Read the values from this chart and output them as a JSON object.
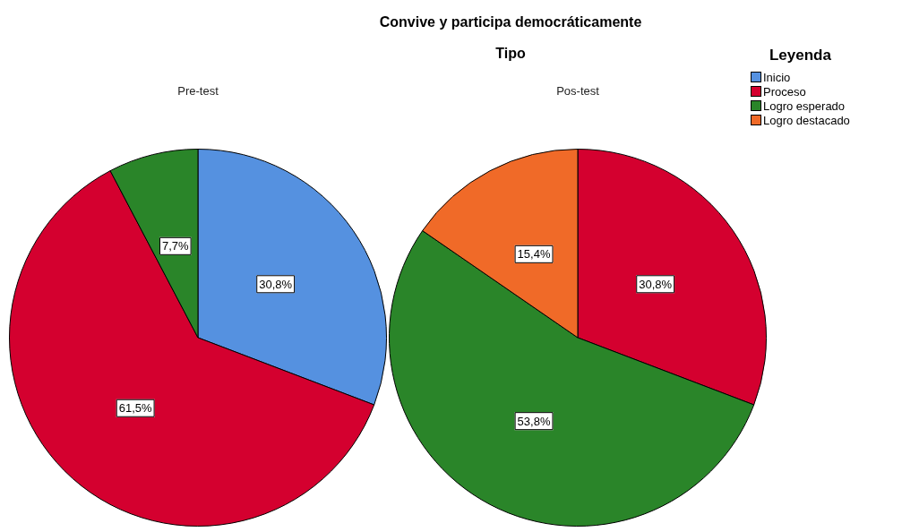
{
  "chart_data": [
    {
      "type": "pie",
      "title": "Pre-test",
      "annotations": [
        "Convive y participa democráticamente",
        "Tipo"
      ],
      "categories": [
        "Inicio",
        "Proceso",
        "Logro esperado",
        "Logro destacado"
      ],
      "values": [
        30.8,
        61.5,
        7.7,
        null
      ],
      "value_labels": [
        "30,8%",
        "61,5%",
        "7,7%",
        null
      ],
      "colors": [
        "#5591e0",
        "#d4002f",
        "#2a8529",
        "#f06a28"
      ],
      "legend": "top right",
      "legend_title": "Leyenda"
    },
    {
      "type": "pie",
      "title": "Pos-test",
      "categories": [
        null,
        null,
        null
      ],
      "values": [
        30.8,
        53.8,
        15.4
      ],
      "value_labels": [
        "30,8%",
        "53,8%",
        "15,4%"
      ],
      "colors": [
        "#d4002f",
        "#2a8529",
        "#f06a28"
      ]
    }
  ]
}
